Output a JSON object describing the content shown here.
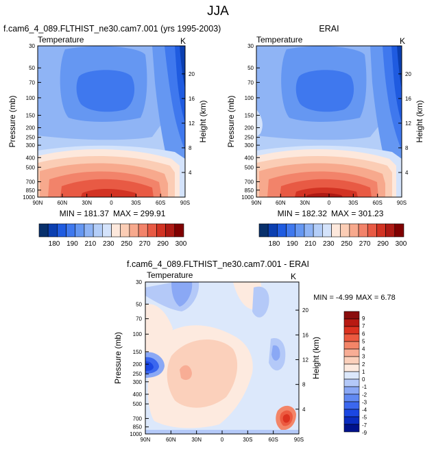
{
  "title": "JJA",
  "units": "K",
  "variable": "Temperature",
  "colors": {
    "abs_scale": [
      "#08306b",
      "#0b3fb0",
      "#1f5be0",
      "#3f78ee",
      "#6597f2",
      "#8fb4f5",
      "#b4cef8",
      "#d4e3fb",
      "#fde8dc",
      "#fbcdb5",
      "#f7a98d",
      "#f2836a",
      "#e85a44",
      "#d23323",
      "#ae1a14",
      "#800000"
    ],
    "diff_scale": [
      "#00128c",
      "#0a2cc0",
      "#1b47e3",
      "#3b67ef",
      "#6189f2",
      "#8aa8f5",
      "#b4c9f8",
      "#dce8fb",
      "#fdeadf",
      "#fbd0bb",
      "#f8ad95",
      "#f38568",
      "#ec5a40",
      "#dc3220",
      "#b81a12",
      "#8a0d0d"
    ]
  },
  "axes": {
    "pressure_label": "Pressure (mb)",
    "height_label": "Height (km)",
    "pressure_ticks": [
      "30",
      "50",
      "70",
      "100",
      "150",
      "200",
      "250",
      "300",
      "400",
      "500",
      "700",
      "850",
      "1000"
    ],
    "height_ticks": [
      "20",
      "16",
      "12",
      "8",
      "4"
    ],
    "lat_ticks": [
      "90N",
      "60N",
      "30N",
      "0",
      "30S",
      "60S",
      "90S"
    ]
  },
  "chart_data": [
    {
      "type": "heatmap",
      "panel": "model",
      "title": "f.cam6_4_089.FLTHIST_ne30.cam7.001 (yrs 1995-2003)",
      "min_label": "MIN = 181.37",
      "max_label": "MAX = 299.91",
      "min": 181.37,
      "max": 299.91,
      "levels": [
        "180",
        "190",
        "210",
        "230",
        "250",
        "270",
        "290",
        "300"
      ],
      "xlim": [
        90,
        -90
      ],
      "ylim": [
        1000,
        30
      ]
    },
    {
      "type": "heatmap",
      "panel": "obs",
      "title": "ERAI",
      "min_label": "MIN = 182.32",
      "max_label": "MAX = 301.23",
      "min": 182.32,
      "max": 301.23,
      "levels": [
        "180",
        "190",
        "210",
        "230",
        "250",
        "270",
        "290",
        "300"
      ],
      "xlim": [
        90,
        -90
      ],
      "ylim": [
        1000,
        30
      ]
    },
    {
      "type": "heatmap",
      "panel": "difference",
      "title": "f.cam6_4_089.FLTHIST_ne30.cam7.001 - ERAI",
      "min_label": "MIN =  -4.99",
      "max_label": "MAX =   6.78",
      "min": -4.99,
      "max": 6.78,
      "levels": [
        "9",
        "7",
        "6",
        "5",
        "4",
        "3",
        "2",
        "1",
        "0",
        "-1",
        "-2",
        "-3",
        "-4",
        "-5",
        "-7",
        "-9"
      ],
      "xlim": [
        90,
        -90
      ],
      "ylim": [
        1000,
        30
      ]
    }
  ]
}
